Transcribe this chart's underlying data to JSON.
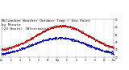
{
  "title_line1": "Milwaukee Weather Outdoor Temp / Dew Point",
  "title_line2": "by Minute",
  "title_line3": "(24 Hours) (Alternate)",
  "title_fontsize": 3.2,
  "background_color": "#ffffff",
  "plot_bg_color": "#ffffff",
  "grid_color": "#aaaaaa",
  "xlim": [
    0,
    1440
  ],
  "ylim": [
    20,
    70
  ],
  "ytick_values": [
    20,
    30,
    40,
    50,
    60,
    70
  ],
  "xticks": [
    0,
    120,
    240,
    360,
    480,
    600,
    720,
    840,
    960,
    1080,
    1200,
    1320,
    1440
  ],
  "xtick_labels": [
    "12a",
    "2",
    "4",
    "6",
    "8",
    "10",
    "12p",
    "2",
    "4",
    "6",
    "8",
    "10",
    "12a"
  ],
  "temp_color": "#cc0000",
  "dew_color": "#0000cc",
  "marker_size": 0.4,
  "temp_peak_minute": 780,
  "temp_peak_value": 62,
  "temp_min_value": 28,
  "dew_peak_minute": 750,
  "dew_peak_value": 46,
  "dew_min_value": 22,
  "temp_sigma": 340,
  "dew_sigma": 360
}
